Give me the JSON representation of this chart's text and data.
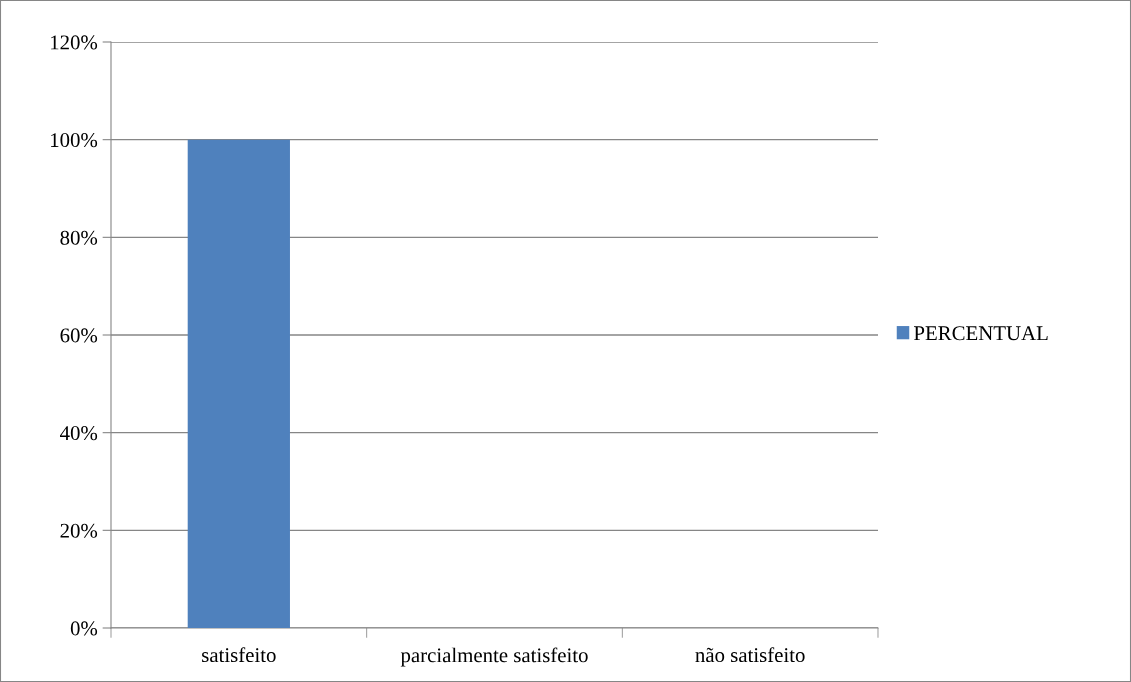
{
  "chart_data": {
    "type": "bar",
    "categories": [
      "satisfeito",
      "parcialmente satisfeito",
      "não satisfeito"
    ],
    "series": [
      {
        "name": "PERCENTUAL",
        "color": "#4f81bd",
        "values": [
          100,
          0,
          0
        ]
      }
    ],
    "ylim": [
      0,
      120
    ],
    "yticks": [
      {
        "value": 0,
        "label": "0%"
      },
      {
        "value": 20,
        "label": "20%"
      },
      {
        "value": 40,
        "label": "40%"
      },
      {
        "value": 60,
        "label": "60%"
      },
      {
        "value": 80,
        "label": "80%"
      },
      {
        "value": 100,
        "label": "100%"
      },
      {
        "value": 120,
        "label": "120%"
      }
    ],
    "grid": "y",
    "legend": "right"
  }
}
